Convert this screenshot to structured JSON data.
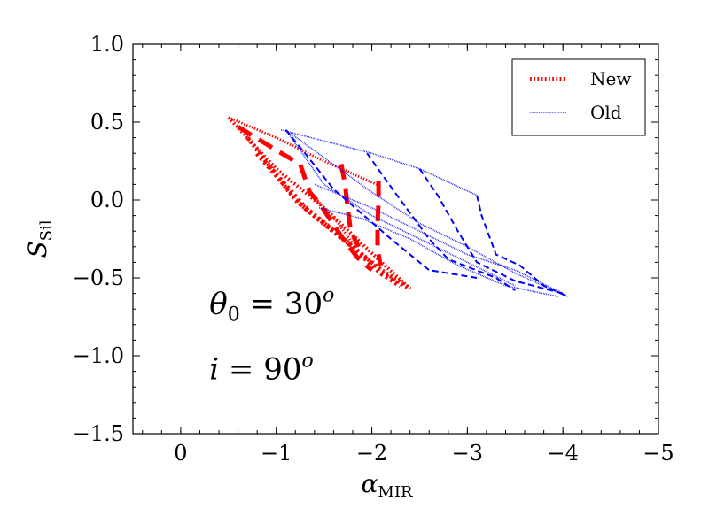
{
  "chart_data": {
    "type": "line",
    "xlabel": {
      "main": "α",
      "sub": "MIR"
    },
    "ylabel": {
      "main": "S",
      "sub": "Sil"
    },
    "xlim": [
      0.5,
      -5
    ],
    "ylim": [
      -1.5,
      1.0
    ],
    "xticks": [
      0,
      -1,
      -2,
      -3,
      -4,
      -5
    ],
    "xtick_labels": [
      "0",
      "−1",
      "−2",
      "−3",
      "−4",
      "−5"
    ],
    "yticks": [
      1.0,
      0.5,
      0.0,
      -0.5,
      -1.0,
      -1.5
    ],
    "ytick_labels": [
      "1.0",
      "0.5",
      "0.0",
      "−0.5",
      "−1.0",
      "−1.5"
    ],
    "x_minor_step": 0.2,
    "y_minor_step": 0.1,
    "grid": false,
    "legend": {
      "placement": "top-right",
      "entries": [
        {
          "label": "New",
          "color": "#ff0000",
          "style": "dotted-thick"
        },
        {
          "label": "Old",
          "color": "#0000ff",
          "style": "dotted-thin"
        }
      ]
    },
    "annotations": [
      {
        "lhs": "θ",
        "sub": "0",
        "rel": " = ",
        "rhs": "30",
        "sup": "o",
        "x": -0.3,
        "y": -0.73
      },
      {
        "lhs": "i",
        "sub": "",
        "rel": " = ",
        "rhs": "90",
        "sup": "o",
        "x": -0.3,
        "y": -1.15
      }
    ],
    "series": [
      {
        "group": "new",
        "color": "#ff0000",
        "dash": "dot",
        "width": 3,
        "x": [
          -0.5,
          -1.0,
          -1.5,
          -2.05
        ],
        "y": [
          0.53,
          0.4,
          0.25,
          0.1
        ]
      },
      {
        "group": "new",
        "color": "#ff0000",
        "dash": "dot",
        "width": 4,
        "x": [
          -0.5,
          -1.0,
          -1.5,
          -2.05,
          -2.4
        ],
        "y": [
          0.53,
          0.2,
          -0.05,
          -0.37,
          -0.57
        ]
      },
      {
        "group": "new",
        "color": "#ff0000",
        "dash": "dot",
        "width": 5,
        "x": [
          -0.7,
          -1.2,
          -1.7,
          -2.1,
          -2.4
        ],
        "y": [
          0.4,
          0.0,
          -0.25,
          -0.45,
          -0.57
        ]
      },
      {
        "group": "new",
        "color": "#ff0000",
        "dash": "dot",
        "width": 6,
        "x": [
          -0.8,
          -1.3,
          -1.8,
          -2.1,
          -2.3
        ],
        "y": [
          0.3,
          -0.05,
          -0.3,
          -0.47,
          -0.55
        ]
      },
      {
        "group": "new",
        "color": "#ff0000",
        "dash": "dot",
        "width": 3,
        "x": [
          -1.35,
          -1.65,
          -1.8
        ],
        "y": [
          0.05,
          -0.15,
          -0.28
        ]
      },
      {
        "group": "new",
        "color": "#ff0000",
        "dash": "dash",
        "width": 5,
        "x": [
          -0.6,
          -1.0,
          -1.25,
          -1.35,
          -1.45,
          -1.7,
          -1.85,
          -2.0
        ],
        "y": [
          0.47,
          0.32,
          0.23,
          0.05,
          -0.02,
          -0.25,
          -0.37,
          -0.45
        ]
      },
      {
        "group": "new",
        "color": "#ff0000",
        "dash": "dash",
        "width": 5,
        "x": [
          -1.68,
          -1.72,
          -1.75,
          -1.78,
          -1.86
        ],
        "y": [
          0.23,
          0.1,
          -0.07,
          -0.2,
          -0.3
        ]
      },
      {
        "group": "new",
        "color": "#ff0000",
        "dash": "dash",
        "width": 5,
        "x": [
          -2.07,
          -2.07,
          -2.06,
          -2.06,
          -2.09
        ],
        "y": [
          0.12,
          -0.02,
          -0.15,
          -0.31,
          -0.42
        ]
      },
      {
        "group": "old",
        "color": "#0000ff",
        "dash": "dot",
        "width": 1.6,
        "x": [
          -1.05,
          -2.0,
          -2.5,
          -3.1
        ],
        "y": [
          0.45,
          0.3,
          0.2,
          0.03
        ]
      },
      {
        "group": "old",
        "color": "#0000ff",
        "dash": "dot",
        "width": 1.6,
        "x": [
          -1.1,
          -2.0,
          -2.5,
          -3.0,
          -3.5,
          -4.05
        ],
        "y": [
          0.45,
          0.05,
          -0.15,
          -0.3,
          -0.47,
          -0.62
        ]
      },
      {
        "group": "old",
        "color": "#0000ff",
        "dash": "dot",
        "width": 1.6,
        "x": [
          -1.4,
          -2.0,
          -2.5,
          -3.0,
          -3.5,
          -4.0
        ],
        "y": [
          0.1,
          -0.05,
          -0.2,
          -0.35,
          -0.45,
          -0.6
        ]
      },
      {
        "group": "old",
        "color": "#0000ff",
        "dash": "dot",
        "width": 1.6,
        "x": [
          -1.45,
          -1.9,
          -2.4,
          -2.9,
          -3.4,
          -3.95
        ],
        "y": [
          -0.05,
          -0.12,
          -0.25,
          -0.42,
          -0.55,
          -0.62
        ]
      },
      {
        "group": "old",
        "color": "#0000ff",
        "dash": "dot",
        "width": 1.6,
        "x": [
          -1.1,
          -1.5,
          -2.0,
          -2.5,
          -3.0,
          -3.5
        ],
        "y": [
          0.45,
          0.1,
          -0.1,
          -0.25,
          -0.4,
          -0.55
        ]
      },
      {
        "group": "old",
        "color": "#0000ff",
        "dash": "dash",
        "width": 2,
        "x": [
          -1.1,
          -1.3,
          -1.6,
          -2.2,
          -2.6,
          -3.1
        ],
        "y": [
          0.45,
          0.3,
          0.07,
          -0.25,
          -0.45,
          -0.5
        ]
      },
      {
        "group": "old",
        "color": "#0000ff",
        "dash": "dash",
        "width": 2,
        "x": [
          -1.95,
          -2.1,
          -2.3,
          -2.6,
          -2.8,
          -3.3,
          -3.5
        ],
        "y": [
          0.3,
          0.17,
          0.0,
          -0.25,
          -0.38,
          -0.5,
          -0.58
        ]
      },
      {
        "group": "old",
        "color": "#0000ff",
        "dash": "dash",
        "width": 2,
        "x": [
          -2.5,
          -2.7,
          -2.9,
          -3.1,
          -3.5,
          -4.0
        ],
        "y": [
          0.2,
          0.02,
          -0.2,
          -0.4,
          -0.52,
          -0.6
        ]
      },
      {
        "group": "old",
        "color": "#0000ff",
        "dash": "dash",
        "width": 2,
        "x": [
          -3.1,
          -3.15,
          -3.3,
          -3.55,
          -3.8,
          -4.05
        ],
        "y": [
          0.03,
          -0.1,
          -0.35,
          -0.42,
          -0.55,
          -0.62
        ]
      }
    ]
  }
}
